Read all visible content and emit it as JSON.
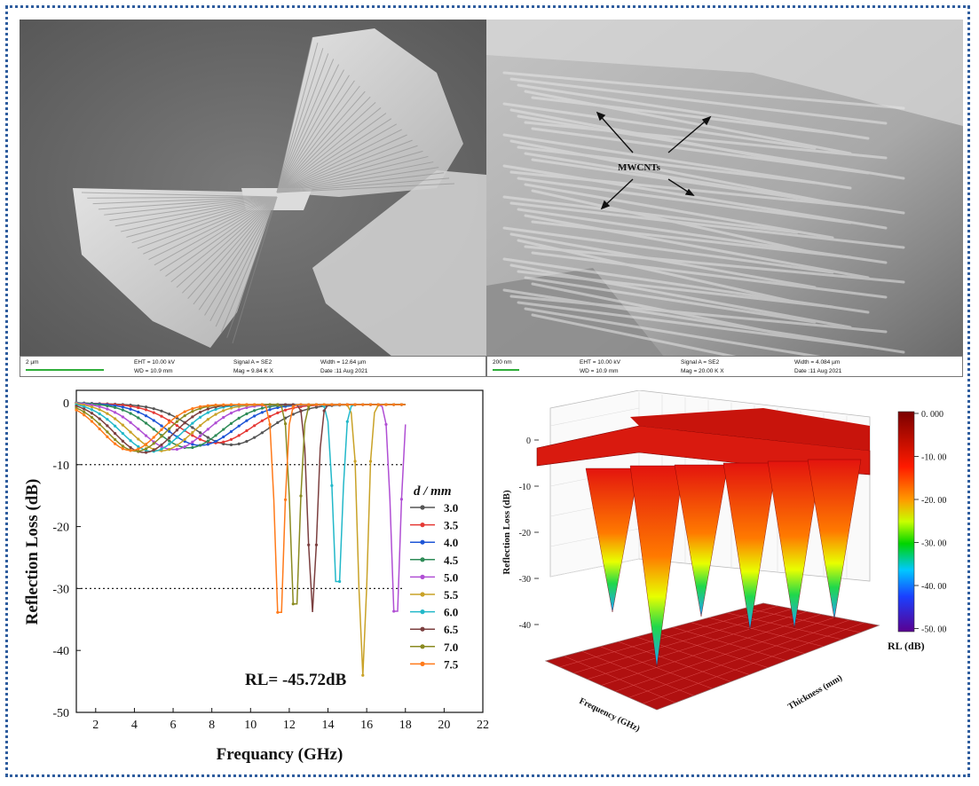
{
  "sem_left": {
    "scale": "2 µm",
    "eht": "EHT = 10.00 kV",
    "wd": "WD = 10.9 mm",
    "signal": "Signal A = SE2",
    "mag": "Mag =   9.84 K X",
    "width": "Width = 12.64 µm",
    "date": "Date :11 Aug 2021"
  },
  "sem_right": {
    "scale": "200 nm",
    "eht": "EHT = 10.00 kV",
    "wd": "WD = 10.9 mm",
    "signal": "Signal A = SE2",
    "mag": "Mag =  20.00 K X",
    "width": "Width = 4.084 µm",
    "date": "Date :11 Aug 2021",
    "annotation": "MWCNTs"
  },
  "chart_data": [
    {
      "type": "line",
      "xlabel": "Frequancy (GHz)",
      "ylabel": "Reflection Loss (dB)",
      "xlim": [
        1,
        22
      ],
      "ylim": [
        -50,
        2
      ],
      "xticks": [
        "2",
        "4",
        "6",
        "8",
        "10",
        "12",
        "14",
        "16",
        "18",
        "20",
        "22"
      ],
      "yticks": [
        "0",
        "-10",
        "-20",
        "-30",
        "-40",
        "-50"
      ],
      "reference_lines": [
        -10,
        -30
      ],
      "legend_title": "d / mm",
      "annotation": "RL= -45.72dB",
      "series": [
        {
          "name": "3.0",
          "color": "#555555",
          "dip": [
            9.0,
            -6.5
          ]
        },
        {
          "name": "3.5",
          "color": "#e53935",
          "dip": [
            8.2,
            -6.2
          ]
        },
        {
          "name": "4.0",
          "color": "#1e55d6",
          "dip": [
            7.4,
            -6.6
          ]
        },
        {
          "name": "4.5",
          "color": "#2e8b57",
          "dip": [
            6.8,
            -7.0
          ]
        },
        {
          "name": "5.0",
          "color": "#b04fd4",
          "dip": [
            6.0,
            -7.3
          ]
        },
        {
          "name": "5.5",
          "color": "#c9a227",
          "dip": [
            5.4,
            -7.5
          ]
        },
        {
          "name": "6.0",
          "color": "#22b8c9",
          "dip": [
            4.9,
            -7.6
          ]
        },
        {
          "name": "6.5",
          "color": "#7b3f3f",
          "dip": [
            4.5,
            -7.8
          ]
        },
        {
          "name": "7.0",
          "color": "#8a8a20",
          "dip": [
            4.1,
            -7.6
          ]
        },
        {
          "name": "7.5",
          "color": "#ff7a1a",
          "dip": [
            3.8,
            -7.5
          ]
        }
      ],
      "sharp_dips": [
        {
          "color": "#ff7a1a",
          "f": 11.5,
          "rl": -39.0
        },
        {
          "color": "#8a8a20",
          "f": 12.3,
          "rl": -37.5
        },
        {
          "color": "#7b3f3f",
          "f": 13.2,
          "rl": -35.5
        },
        {
          "color": "#22b8c9",
          "f": 14.5,
          "rl": -33.5
        },
        {
          "color": "#c9a227",
          "f": 15.8,
          "rl": -45.72
        },
        {
          "color": "#b04fd4",
          "f": 17.5,
          "rl": -38.8
        }
      ]
    },
    {
      "type": "surface3d",
      "zlabel": "Reflection Loss (dB)",
      "xlabel": "Frequency (GHz)",
      "ylabel": "Thickness (mm)",
      "zticks": [
        "0",
        "-10",
        "-20",
        "-30",
        "-40"
      ],
      "colorbar_label": "RL (dB)",
      "colorbar_ticks": [
        "0. 000",
        "-10. 00",
        "-20. 00",
        "-30. 00",
        "-40. 00",
        "-50. 00"
      ]
    }
  ]
}
